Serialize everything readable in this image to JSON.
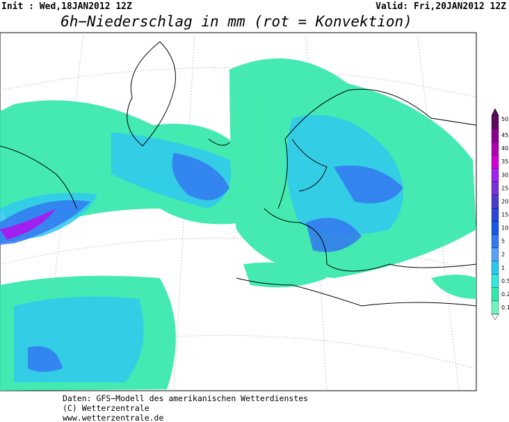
{
  "header": {
    "init": "Init : Wed,18JAN2012 12Z",
    "valid": "Valid: Fri,20JAN2012 12Z",
    "title": "6h−Niederschlag in mm (rot = Konvektion)"
  },
  "legend": {
    "levels": [
      50,
      45,
      40,
      35,
      30,
      25,
      20,
      15,
      10,
      5,
      2,
      1,
      0.5,
      0.2,
      0.1
    ],
    "colors": [
      "#5a0a5a",
      "#8b008b",
      "#b000b0",
      "#d000d0",
      "#a020f0",
      "#7830d8",
      "#4b3cd0",
      "#2a44d8",
      "#1a58e8",
      "#3478f0",
      "#5aa0f8",
      "#28c8f0",
      "#30e8e0",
      "#30e8a8",
      "#70f4c0"
    ]
  },
  "footer": {
    "lines": [
      "Daten: GFS−Modell des amerikanischen Wetterdienstes",
      "(C) Wetterzentrale",
      "www.wetterzentrale.de"
    ]
  }
}
